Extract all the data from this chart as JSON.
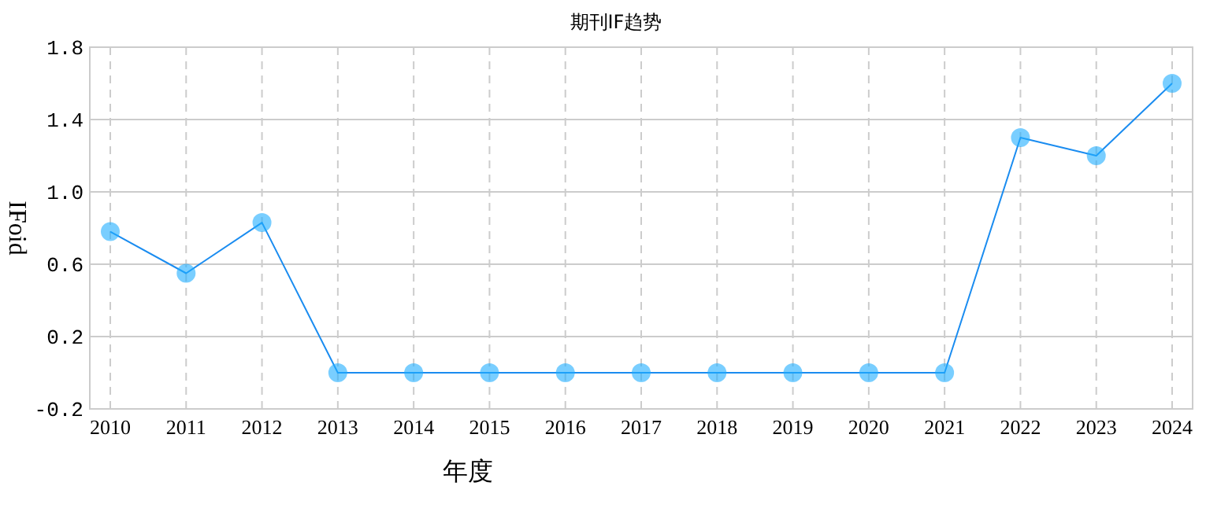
{
  "chart_data": {
    "type": "line",
    "title": "期刊IF趋势",
    "xlabel": "年度",
    "ylabel": "IFoid",
    "categories": [
      "2010",
      "2011",
      "2012",
      "2013",
      "2014",
      "2015",
      "2016",
      "2017",
      "2018",
      "2019",
      "2020",
      "2021",
      "2022",
      "2023",
      "2024"
    ],
    "series": [
      {
        "color": "#1a8cf0",
        "values": [
          0.78,
          0.55,
          0.83,
          0,
          0,
          0,
          0,
          0,
          0,
          0,
          0,
          0,
          1.3,
          1.2,
          1.6
        ]
      }
    ],
    "ylim": [
      -0.2,
      1.8
    ],
    "yticks": [
      -0.2,
      0.2,
      0.6,
      {
        "value": 1,
        "label": "1.0"
      },
      1.4,
      1.8
    ],
    "grid": true,
    "marker": "circle",
    "line_style": "solid"
  }
}
